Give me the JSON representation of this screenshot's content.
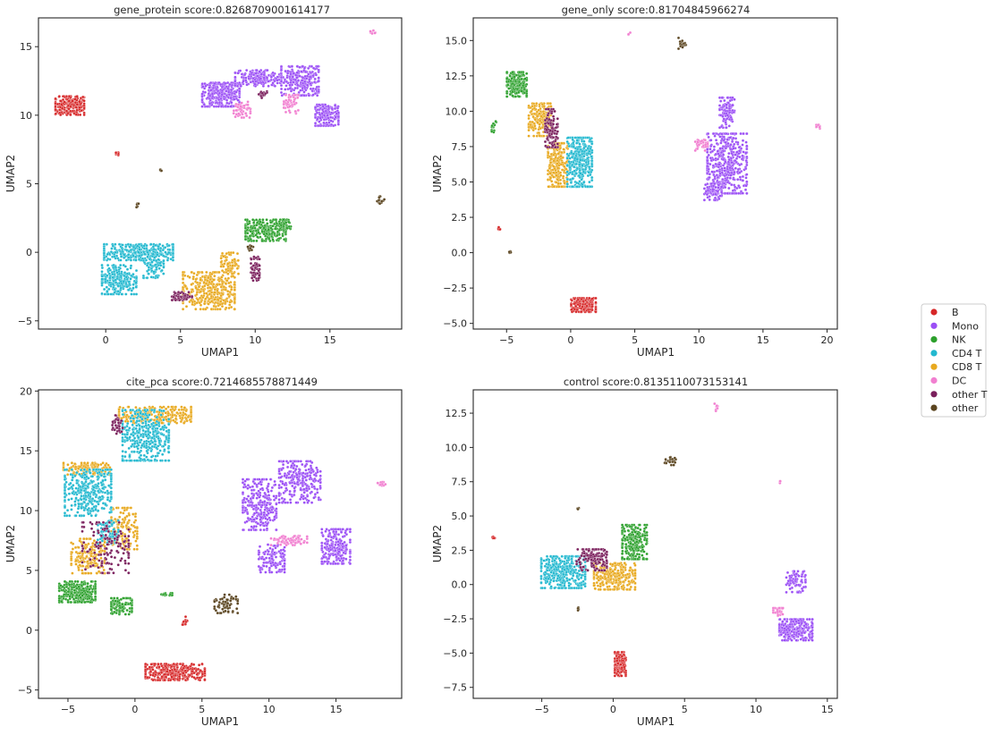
{
  "legend": {
    "entries": [
      {
        "label": "B",
        "color": "#d62728"
      },
      {
        "label": "Mono",
        "color": "#9b4ff5"
      },
      {
        "label": "NK",
        "color": "#2ca02c"
      },
      {
        "label": "CD4 T",
        "color": "#22b8cf"
      },
      {
        "label": "CD8 T",
        "color": "#e8a91f"
      },
      {
        "label": "DC",
        "color": "#f17fd0"
      },
      {
        "label": "other T",
        "color": "#7a1f5c"
      },
      {
        "label": "other",
        "color": "#5b4520"
      }
    ],
    "placement": "right-center"
  },
  "chart_data": [
    {
      "type": "scatter",
      "title": "gene_protein score:0.8268709001614177",
      "xlabel": "UMAP1",
      "ylabel": "UMAP2",
      "xlim": [
        -4.5,
        19.8
      ],
      "ylim": [
        -5.6,
        17.1
      ],
      "xticks": [
        0,
        5,
        10,
        15
      ],
      "yticks": [
        -5,
        0,
        5,
        10,
        15
      ],
      "xtick_labels": [
        "0",
        "5",
        "10",
        "15"
      ],
      "ytick_labels": [
        "−5",
        "0",
        "5",
        "10",
        "15"
      ],
      "grid": false,
      "clusters": [
        {
          "type": "B",
          "cx": -2.4,
          "cy": 10.7,
          "rx": 1.0,
          "ry": 0.7,
          "n": 220
        },
        {
          "type": "B",
          "cx": 0.7,
          "cy": 7.2,
          "rx": 0.15,
          "ry": 0.12,
          "n": 8
        },
        {
          "type": "other",
          "cx": 3.7,
          "cy": 6.0,
          "rx": 0.1,
          "ry": 0.1,
          "n": 5
        },
        {
          "type": "other",
          "cx": 2.1,
          "cy": 3.4,
          "rx": 0.1,
          "ry": 0.15,
          "n": 5
        },
        {
          "type": "DC",
          "cx": 17.9,
          "cy": 16.1,
          "rx": 0.2,
          "ry": 0.15,
          "n": 8
        },
        {
          "type": "other",
          "cx": 18.4,
          "cy": 3.8,
          "rx": 0.25,
          "ry": 0.3,
          "n": 14
        },
        {
          "type": "Mono",
          "cx": 7.7,
          "cy": 11.5,
          "rx": 1.3,
          "ry": 0.9,
          "n": 320
        },
        {
          "type": "Mono",
          "cx": 10.2,
          "cy": 12.7,
          "rx": 1.6,
          "ry": 0.6,
          "n": 200
        },
        {
          "type": "Mono",
          "cx": 13.0,
          "cy": 12.5,
          "rx": 1.3,
          "ry": 1.1,
          "n": 260
        },
        {
          "type": "Mono",
          "cx": 14.8,
          "cy": 10.0,
          "rx": 0.8,
          "ry": 0.8,
          "n": 160
        },
        {
          "type": "DC",
          "cx": 9.1,
          "cy": 10.4,
          "rx": 0.6,
          "ry": 0.6,
          "n": 50
        },
        {
          "type": "DC",
          "cx": 12.4,
          "cy": 10.8,
          "rx": 0.5,
          "ry": 0.7,
          "n": 50
        },
        {
          "type": "other T",
          "cx": 10.5,
          "cy": 11.5,
          "rx": 0.3,
          "ry": 0.25,
          "n": 20
        },
        {
          "type": "CD4 T",
          "cx": 2.2,
          "cy": 0.0,
          "rx": 2.4,
          "ry": 0.6,
          "n": 340
        },
        {
          "type": "CD4 T",
          "cx": 0.9,
          "cy": -2.0,
          "rx": 1.2,
          "ry": 1.1,
          "n": 240
        },
        {
          "type": "CD4 T",
          "cx": 3.2,
          "cy": -1.0,
          "rx": 0.7,
          "ry": 0.9,
          "n": 80
        },
        {
          "type": "CD8 T",
          "cx": 6.9,
          "cy": -2.8,
          "rx": 1.8,
          "ry": 1.4,
          "n": 380
        },
        {
          "type": "CD8 T",
          "cx": 8.3,
          "cy": -0.8,
          "rx": 0.6,
          "ry": 0.8,
          "n": 80
        },
        {
          "type": "other T",
          "cx": 5.1,
          "cy": -3.2,
          "rx": 0.7,
          "ry": 0.3,
          "n": 60
        },
        {
          "type": "other T",
          "cx": 10.0,
          "cy": -1.2,
          "rx": 0.3,
          "ry": 0.9,
          "n": 60
        },
        {
          "type": "NK",
          "cx": 10.7,
          "cy": 1.6,
          "rx": 1.4,
          "ry": 0.8,
          "n": 260
        },
        {
          "type": "NK",
          "cx": 12.0,
          "cy": 2.0,
          "rx": 0.4,
          "ry": 0.4,
          "n": 50
        },
        {
          "type": "other",
          "cx": 9.7,
          "cy": 0.3,
          "rx": 0.2,
          "ry": 0.2,
          "n": 10
        }
      ]
    },
    {
      "type": "scatter",
      "title": "gene_only score:0.81704845966274",
      "xlabel": "UMAP1",
      "ylabel": "UMAP2",
      "xlim": [
        -7.6,
        20.8
      ],
      "ylim": [
        -5.4,
        16.6
      ],
      "xticks": [
        -5,
        0,
        5,
        10,
        15,
        20
      ],
      "yticks": [
        -5.0,
        -2.5,
        0.0,
        2.5,
        5.0,
        7.5,
        10.0,
        12.5,
        15.0
      ],
      "xtick_labels": [
        "−5",
        "0",
        "5",
        "10",
        "15",
        "20"
      ],
      "ytick_labels": [
        "−5.0",
        "−2.5",
        "0.0",
        "2.5",
        "5.0",
        "7.5",
        "10.0",
        "12.5",
        "15.0"
      ],
      "grid": false,
      "clusters": [
        {
          "type": "B",
          "cx": 1.0,
          "cy": -3.7,
          "rx": 1.0,
          "ry": 0.5,
          "n": 200
        },
        {
          "type": "B",
          "cx": -5.6,
          "cy": 1.7,
          "rx": 0.1,
          "ry": 0.15,
          "n": 6
        },
        {
          "type": "other",
          "cx": -4.7,
          "cy": 0.0,
          "rx": 0.1,
          "ry": 0.1,
          "n": 4
        },
        {
          "type": "other",
          "cx": 8.7,
          "cy": 14.8,
          "rx": 0.3,
          "ry": 0.4,
          "n": 18
        },
        {
          "type": "DC",
          "cx": 4.6,
          "cy": 15.5,
          "rx": 0.1,
          "ry": 0.1,
          "n": 3
        },
        {
          "type": "DC",
          "cx": 19.3,
          "cy": 8.9,
          "rx": 0.3,
          "ry": 0.15,
          "n": 8
        },
        {
          "type": "NK",
          "cx": -6.0,
          "cy": 8.9,
          "rx": 0.2,
          "ry": 0.4,
          "n": 14
        },
        {
          "type": "NK",
          "cx": -4.2,
          "cy": 11.9,
          "rx": 0.8,
          "ry": 0.9,
          "n": 220
        },
        {
          "type": "CD8 T",
          "cx": -2.4,
          "cy": 9.4,
          "rx": 0.9,
          "ry": 1.2,
          "n": 200
        },
        {
          "type": "CD8 T",
          "cx": -1.0,
          "cy": 6.2,
          "rx": 0.8,
          "ry": 1.6,
          "n": 220
        },
        {
          "type": "other T",
          "cx": -1.5,
          "cy": 8.8,
          "rx": 0.5,
          "ry": 1.4,
          "n": 120
        },
        {
          "type": "CD4 T",
          "cx": 0.7,
          "cy": 6.4,
          "rx": 1.0,
          "ry": 1.8,
          "n": 360
        },
        {
          "type": "Mono",
          "cx": 12.2,
          "cy": 6.3,
          "rx": 1.6,
          "ry": 2.2,
          "n": 460
        },
        {
          "type": "Mono",
          "cx": 11.1,
          "cy": 4.3,
          "rx": 0.7,
          "ry": 0.6,
          "n": 80
        },
        {
          "type": "Mono",
          "cx": 12.2,
          "cy": 9.9,
          "rx": 0.6,
          "ry": 1.1,
          "n": 100
        },
        {
          "type": "DC",
          "cx": 10.2,
          "cy": 7.6,
          "rx": 0.5,
          "ry": 0.4,
          "n": 40
        }
      ]
    },
    {
      "type": "scatter",
      "title": "cite_pca score:0.7214685578871449",
      "xlabel": "UMAP1",
      "ylabel": "UMAP2",
      "xlim": [
        -7.2,
        19.9
      ],
      "ylim": [
        -5.7,
        20.1
      ],
      "xticks": [
        -5,
        0,
        5,
        10,
        15
      ],
      "yticks": [
        -5,
        0,
        5,
        10,
        15,
        20
      ],
      "xtick_labels": [
        "−5",
        "0",
        "5",
        "10",
        "15"
      ],
      "ytick_labels": [
        "−5",
        "0",
        "5",
        "10",
        "15",
        "20"
      ],
      "grid": false,
      "clusters": [
        {
          "type": "B",
          "cx": 3.0,
          "cy": -3.5,
          "rx": 2.3,
          "ry": 0.7,
          "n": 340
        },
        {
          "type": "B",
          "cx": 3.7,
          "cy": 0.8,
          "rx": 0.2,
          "ry": 0.4,
          "n": 12
        },
        {
          "type": "NK",
          "cx": -4.3,
          "cy": 3.2,
          "rx": 1.4,
          "ry": 0.9,
          "n": 280
        },
        {
          "type": "NK",
          "cx": -1.0,
          "cy": 2.0,
          "rx": 0.8,
          "ry": 0.7,
          "n": 120
        },
        {
          "type": "NK",
          "cx": 2.3,
          "cy": 3.0,
          "rx": 0.5,
          "ry": 0.1,
          "n": 20
        },
        {
          "type": "other",
          "cx": 6.8,
          "cy": 2.2,
          "rx": 0.9,
          "ry": 0.8,
          "n": 60
        },
        {
          "type": "CD8 T",
          "cx": -3.5,
          "cy": 6.2,
          "rx": 1.3,
          "ry": 1.5,
          "n": 180
        },
        {
          "type": "CD8 T",
          "cx": -3.6,
          "cy": 13.5,
          "rx": 1.8,
          "ry": 0.5,
          "n": 160
        },
        {
          "type": "CD8 T",
          "cx": 1.5,
          "cy": 18.0,
          "rx": 2.8,
          "ry": 0.7,
          "n": 240
        },
        {
          "type": "CD8 T",
          "cx": -0.8,
          "cy": 8.5,
          "rx": 1.0,
          "ry": 1.8,
          "n": 140
        },
        {
          "type": "CD4 T",
          "cx": -3.5,
          "cy": 11.5,
          "rx": 1.8,
          "ry": 2.0,
          "n": 360
        },
        {
          "type": "CD4 T",
          "cx": 0.8,
          "cy": 16.3,
          "rx": 1.8,
          "ry": 2.2,
          "n": 380
        },
        {
          "type": "CD4 T",
          "cx": -2.0,
          "cy": 8.2,
          "rx": 0.8,
          "ry": 1.0,
          "n": 80
        },
        {
          "type": "other T",
          "cx": -2.2,
          "cy": 6.9,
          "rx": 1.8,
          "ry": 2.2,
          "n": 140
        },
        {
          "type": "other T",
          "cx": -1.3,
          "cy": 17.2,
          "rx": 0.4,
          "ry": 0.8,
          "n": 40
        },
        {
          "type": "Mono",
          "cx": 9.3,
          "cy": 10.5,
          "rx": 1.3,
          "ry": 2.2,
          "n": 280
        },
        {
          "type": "Mono",
          "cx": 10.2,
          "cy": 6.0,
          "rx": 1.0,
          "ry": 1.2,
          "n": 120
        },
        {
          "type": "Mono",
          "cx": 12.3,
          "cy": 12.4,
          "rx": 1.6,
          "ry": 1.8,
          "n": 260
        },
        {
          "type": "Mono",
          "cx": 15.0,
          "cy": 7.0,
          "rx": 1.1,
          "ry": 1.5,
          "n": 220
        },
        {
          "type": "DC",
          "cx": 11.5,
          "cy": 7.5,
          "rx": 1.4,
          "ry": 0.4,
          "n": 70
        },
        {
          "type": "DC",
          "cx": 18.4,
          "cy": 12.2,
          "rx": 0.3,
          "ry": 0.2,
          "n": 12
        }
      ]
    },
    {
      "type": "scatter",
      "title": "control score:0.8135110073153141",
      "xlabel": "UMAP1",
      "ylabel": "UMAP2",
      "xlim": [
        -9.8,
        15.7
      ],
      "ylim": [
        -8.3,
        14.2
      ],
      "xticks": [
        -5,
        0,
        5,
        10,
        15
      ],
      "yticks": [
        -7.5,
        -5.0,
        -2.5,
        0.0,
        2.5,
        5.0,
        7.5,
        10.0,
        12.5
      ],
      "xtick_labels": [
        "−5",
        "0",
        "5",
        "10",
        "15"
      ],
      "ytick_labels": [
        "−7.5",
        "−5.0",
        "−2.5",
        "0.0",
        "2.5",
        "5.0",
        "7.5",
        "10.0",
        "12.5"
      ],
      "grid": false,
      "clusters": [
        {
          "type": "B",
          "cx": 0.5,
          "cy": -5.8,
          "rx": 0.4,
          "ry": 0.9,
          "n": 150
        },
        {
          "type": "B",
          "cx": -8.4,
          "cy": 3.4,
          "rx": 0.15,
          "ry": 0.1,
          "n": 6
        },
        {
          "type": "DC",
          "cx": 7.2,
          "cy": 12.9,
          "rx": 0.15,
          "ry": 0.3,
          "n": 8
        },
        {
          "type": "DC",
          "cx": 11.7,
          "cy": 7.5,
          "rx": 0.1,
          "ry": 0.1,
          "n": 3
        },
        {
          "type": "other",
          "cx": 4.0,
          "cy": 9.0,
          "rx": 0.4,
          "ry": 0.3,
          "n": 20
        },
        {
          "type": "other",
          "cx": -2.5,
          "cy": 5.5,
          "rx": 0.1,
          "ry": 0.15,
          "n": 5
        },
        {
          "type": "other",
          "cx": -2.4,
          "cy": -1.8,
          "rx": 0.1,
          "ry": 0.2,
          "n": 5
        },
        {
          "type": "CD4 T",
          "cx": -3.5,
          "cy": 0.9,
          "rx": 1.6,
          "ry": 1.2,
          "n": 360
        },
        {
          "type": "CD8 T",
          "cx": 0.1,
          "cy": 0.6,
          "rx": 1.5,
          "ry": 1.0,
          "n": 300
        },
        {
          "type": "other T",
          "cx": -1.5,
          "cy": 1.8,
          "rx": 1.1,
          "ry": 0.8,
          "n": 140
        },
        {
          "type": "NK",
          "cx": 1.5,
          "cy": 3.1,
          "rx": 0.9,
          "ry": 1.3,
          "n": 240
        },
        {
          "type": "Mono",
          "cx": 12.8,
          "cy": -3.3,
          "rx": 1.2,
          "ry": 0.8,
          "n": 260
        },
        {
          "type": "Mono",
          "cx": 12.8,
          "cy": 0.2,
          "rx": 0.7,
          "ry": 0.8,
          "n": 80
        },
        {
          "type": "DC",
          "cx": 11.6,
          "cy": -2.0,
          "rx": 0.4,
          "ry": 0.3,
          "n": 30
        }
      ]
    }
  ]
}
